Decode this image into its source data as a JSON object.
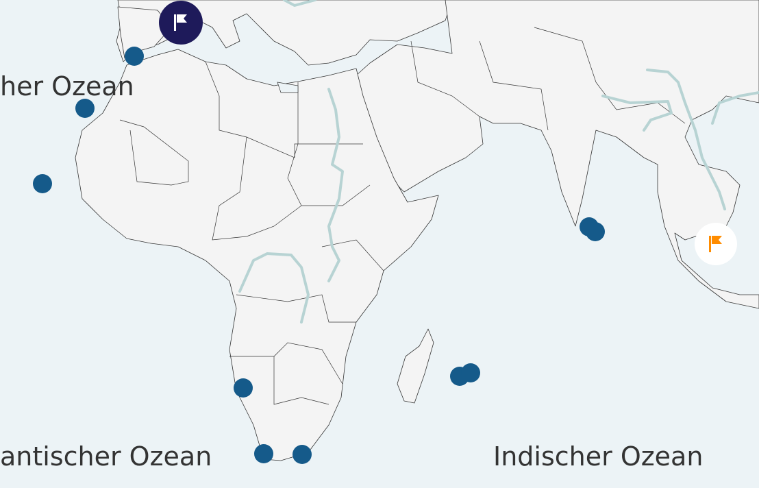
{
  "map": {
    "ocean_labels": {
      "north_atlantic": "her Ozean",
      "south_atlantic": "antischer Ozean",
      "indian": "Indischer Ozean"
    },
    "colors": {
      "ocean": "#ecf3f6",
      "land": "#f4f4f4",
      "border": "#333333",
      "river": "#b7d3d3",
      "marker": "#155a8a",
      "flag_active_bg": "#1e1a5a",
      "flag_active_icon": "#ffffff",
      "flag_inactive_bg": "#ffffff",
      "flag_inactive_icon": "#ff8c00"
    },
    "markers": [
      {
        "id": "marker-1"
      },
      {
        "id": "marker-2"
      },
      {
        "id": "marker-3"
      },
      {
        "id": "marker-4"
      },
      {
        "id": "marker-5"
      },
      {
        "id": "marker-6"
      },
      {
        "id": "marker-7"
      },
      {
        "id": "marker-8"
      },
      {
        "id": "marker-9"
      },
      {
        "id": "marker-10"
      }
    ],
    "flags": [
      {
        "icon": "flag-icon",
        "state": "active"
      },
      {
        "icon": "flag-icon",
        "state": "inactive"
      }
    ]
  }
}
